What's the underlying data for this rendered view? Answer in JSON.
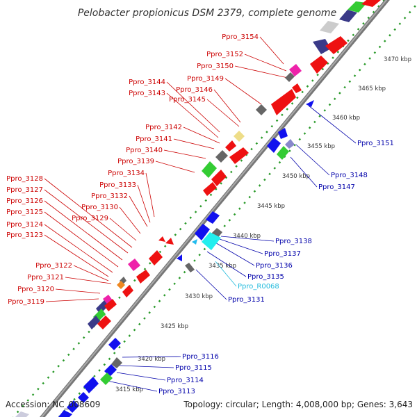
{
  "title": "Pelobacter propionicus DSM 2379, complete genome",
  "accession": "Accession: NC_008609",
  "topology": "Topology: circular; Length: 4,008,000 bp; Genes: 3,643",
  "colors": {
    "background": "#ffffff",
    "backbone": "#888888",
    "dots": "#2a9a2a",
    "reverse_label": "#cc0000",
    "forward_label": "#0000aa",
    "rna_label": "#22bbdd",
    "red_gene": "#ee1111",
    "blue_gene": "#1111ee",
    "green_gene": "#33cc33",
    "gray_gene": "#666666",
    "lightgray_gene": "#cccccc",
    "navy_gene": "#3a3a88",
    "pink_gene": "#ee22aa",
    "cyan_gene": "#22eeee",
    "orange_gene": "#ee8822",
    "yellow_gene": "#eedd88"
  },
  "ticks": [
    {
      "label": "3415 kbp",
      "kbp": 3415
    },
    {
      "label": "3420 kbp",
      "kbp": 3420
    },
    {
      "label": "3425 kbp",
      "kbp": 3425
    },
    {
      "label": "3430 kbp",
      "kbp": 3430
    },
    {
      "label": "3435 kbp",
      "kbp": 3435
    },
    {
      "label": "3440 kbp",
      "kbp": 3440
    },
    {
      "label": "3445 kbp",
      "kbp": 3445
    },
    {
      "label": "3450 kbp",
      "kbp": 3450
    },
    {
      "label": "3455 kbp",
      "kbp": 3455
    },
    {
      "label": "3460 kbp",
      "kbp": 3460
    },
    {
      "label": "3465 kbp",
      "kbp": 3465
    },
    {
      "label": "3470 kbp",
      "kbp": 3470
    }
  ],
  "reverse_genes": [
    {
      "label": "Ppro_3154"
    },
    {
      "label": "Ppro_3152"
    },
    {
      "label": "Ppro_3150"
    },
    {
      "label": "Ppro_3149"
    },
    {
      "label": "Ppro_3146"
    },
    {
      "label": "Ppro_3145"
    },
    {
      "label": "Ppro_3144"
    },
    {
      "label": "Ppro_3143"
    },
    {
      "label": "Ppro_3142"
    },
    {
      "label": "Ppro_3141"
    },
    {
      "label": "Ppro_3140"
    },
    {
      "label": "Ppro_3139"
    },
    {
      "label": "Ppro_3134"
    },
    {
      "label": "Ppro_3133"
    },
    {
      "label": "Ppro_3132"
    },
    {
      "label": "Ppro_3130"
    },
    {
      "label": "Ppro_3129"
    },
    {
      "label": "Ppro_3128"
    },
    {
      "label": "Ppro_3127"
    },
    {
      "label": "Ppro_3126"
    },
    {
      "label": "Ppro_3125"
    },
    {
      "label": "Ppro_3124"
    },
    {
      "label": "Ppro_3123"
    },
    {
      "label": "Ppro_3122"
    },
    {
      "label": "Ppro_3121"
    },
    {
      "label": "Ppro_3120"
    },
    {
      "label": "Ppro_3119"
    }
  ],
  "forward_genes": [
    {
      "label": "Ppro_3151"
    },
    {
      "label": "Ppro_3148"
    },
    {
      "label": "Ppro_3147"
    },
    {
      "label": "Ppro_3138"
    },
    {
      "label": "Ppro_3137"
    },
    {
      "label": "Ppro_3136"
    },
    {
      "label": "Ppro_3135"
    },
    {
      "label": "Ppro_R0068"
    },
    {
      "label": "Ppro_3131"
    },
    {
      "label": "Ppro_3116"
    },
    {
      "label": "Ppro_3115"
    },
    {
      "label": "Ppro_3114"
    },
    {
      "label": "Ppro_3113"
    }
  ]
}
